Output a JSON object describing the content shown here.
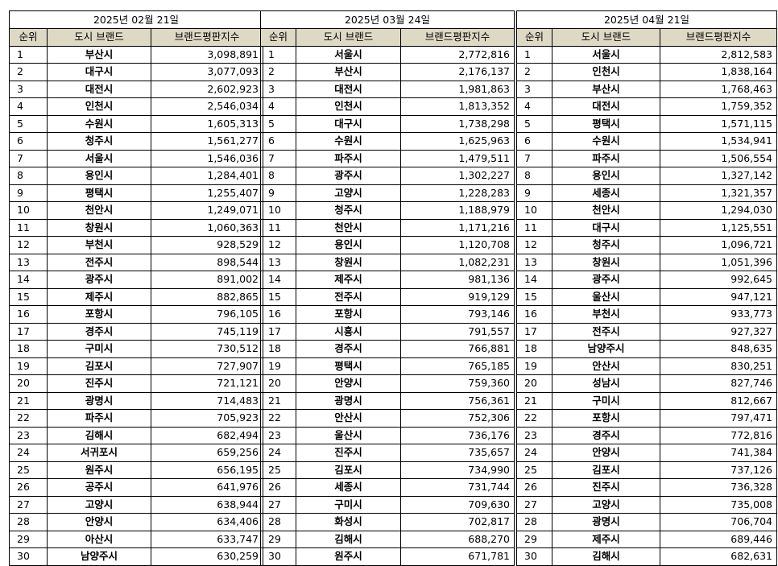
{
  "columns": [
    "순위",
    "도시 브랜드",
    "브랜드평판지수"
  ],
  "panels": [
    {
      "date": "2025년 02월 21일",
      "rows": [
        [
          "1",
          "부산시",
          "3,098,891"
        ],
        [
          "2",
          "대구시",
          "3,077,093"
        ],
        [
          "3",
          "대전시",
          "2,602,923"
        ],
        [
          "4",
          "인천시",
          "2,546,034"
        ],
        [
          "5",
          "수원시",
          "1,605,313"
        ],
        [
          "6",
          "청주시",
          "1,561,277"
        ],
        [
          "7",
          "서울시",
          "1,546,036"
        ],
        [
          "8",
          "용인시",
          "1,284,401"
        ],
        [
          "9",
          "평택시",
          "1,255,407"
        ],
        [
          "10",
          "천안시",
          "1,249,071"
        ],
        [
          "11",
          "창원시",
          "1,060,363"
        ],
        [
          "12",
          "부천시",
          "928,529"
        ],
        [
          "13",
          "전주시",
          "898,544"
        ],
        [
          "14",
          "광주시",
          "891,002"
        ],
        [
          "15",
          "제주시",
          "882,865"
        ],
        [
          "16",
          "포항시",
          "796,105"
        ],
        [
          "17",
          "경주시",
          "745,119"
        ],
        [
          "18",
          "구미시",
          "730,512"
        ],
        [
          "19",
          "김포시",
          "727,907"
        ],
        [
          "20",
          "진주시",
          "721,121"
        ],
        [
          "21",
          "광명시",
          "714,483"
        ],
        [
          "22",
          "파주시",
          "705,923"
        ],
        [
          "23",
          "김해시",
          "682,494"
        ],
        [
          "24",
          "서귀포시",
          "659,256"
        ],
        [
          "25",
          "원주시",
          "656,195"
        ],
        [
          "26",
          "공주시",
          "641,976"
        ],
        [
          "27",
          "고양시",
          "638,944"
        ],
        [
          "28",
          "안양시",
          "634,406"
        ],
        [
          "29",
          "아산시",
          "633,747"
        ],
        [
          "30",
          "남양주시",
          "630,259"
        ]
      ]
    },
    {
      "date": "2025년 03월 24일",
      "rows": [
        [
          "1",
          "서울시",
          "2,772,816"
        ],
        [
          "2",
          "부산시",
          "2,176,137"
        ],
        [
          "3",
          "대전시",
          "1,981,863"
        ],
        [
          "4",
          "인천시",
          "1,813,352"
        ],
        [
          "5",
          "대구시",
          "1,738,298"
        ],
        [
          "6",
          "수원시",
          "1,625,963"
        ],
        [
          "7",
          "파주시",
          "1,479,511"
        ],
        [
          "8",
          "광주시",
          "1,302,227"
        ],
        [
          "9",
          "고양시",
          "1,228,283"
        ],
        [
          "10",
          "청주시",
          "1,188,979"
        ],
        [
          "11",
          "천안시",
          "1,171,216"
        ],
        [
          "12",
          "용인시",
          "1,120,708"
        ],
        [
          "13",
          "창원시",
          "1,082,231"
        ],
        [
          "14",
          "제주시",
          "981,136"
        ],
        [
          "15",
          "전주시",
          "919,129"
        ],
        [
          "16",
          "포항시",
          "793,146"
        ],
        [
          "17",
          "시흥시",
          "791,557"
        ],
        [
          "18",
          "경주시",
          "766,881"
        ],
        [
          "19",
          "평택시",
          "765,185"
        ],
        [
          "20",
          "안양시",
          "759,360"
        ],
        [
          "21",
          "광명시",
          "756,361"
        ],
        [
          "22",
          "안산시",
          "752,306"
        ],
        [
          "23",
          "울산시",
          "736,176"
        ],
        [
          "24",
          "진주시",
          "735,657"
        ],
        [
          "25",
          "김포시",
          "734,990"
        ],
        [
          "26",
          "세종시",
          "731,744"
        ],
        [
          "27",
          "구미시",
          "709,630"
        ],
        [
          "28",
          "화성시",
          "702,817"
        ],
        [
          "29",
          "김해시",
          "688,270"
        ],
        [
          "30",
          "원주시",
          "671,781"
        ]
      ]
    },
    {
      "date": "2025년 04월 21일",
      "rows": [
        [
          "1",
          "서울시",
          "2,812,583"
        ],
        [
          "2",
          "인천시",
          "1,838,164"
        ],
        [
          "3",
          "부산시",
          "1,768,463"
        ],
        [
          "4",
          "대전시",
          "1,759,352"
        ],
        [
          "5",
          "평택시",
          "1,571,115"
        ],
        [
          "6",
          "수원시",
          "1,534,941"
        ],
        [
          "7",
          "파주시",
          "1,506,554"
        ],
        [
          "8",
          "용인시",
          "1,327,142"
        ],
        [
          "9",
          "세종시",
          "1,321,357"
        ],
        [
          "10",
          "천안시",
          "1,294,030"
        ],
        [
          "11",
          "대구시",
          "1,125,551"
        ],
        [
          "12",
          "청주시",
          "1,096,721"
        ],
        [
          "13",
          "창원시",
          "1,051,396"
        ],
        [
          "14",
          "광주시",
          "992,645"
        ],
        [
          "15",
          "울산시",
          "947,121"
        ],
        [
          "16",
          "부천시",
          "933,773"
        ],
        [
          "17",
          "전주시",
          "927,327"
        ],
        [
          "18",
          "남양주시",
          "848,635"
        ],
        [
          "19",
          "안산시",
          "830,251"
        ],
        [
          "20",
          "성남시",
          "827,746"
        ],
        [
          "21",
          "구미시",
          "812,667"
        ],
        [
          "22",
          "포항시",
          "797,471"
        ],
        [
          "23",
          "경주시",
          "772,816"
        ],
        [
          "24",
          "안양시",
          "741,384"
        ],
        [
          "25",
          "김포시",
          "737,126"
        ],
        [
          "26",
          "진주시",
          "736,328"
        ],
        [
          "27",
          "고양시",
          "735,008"
        ],
        [
          "28",
          "광명시",
          "706,704"
        ],
        [
          "29",
          "제주시",
          "689,446"
        ],
        [
          "30",
          "김해시",
          "682,631"
        ]
      ]
    }
  ]
}
